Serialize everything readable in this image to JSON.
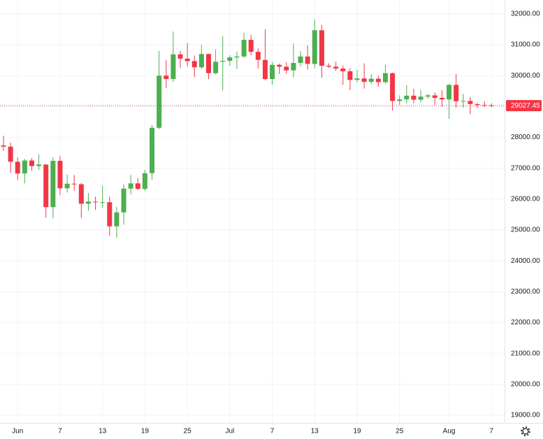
{
  "chart_data": {
    "type": "candlestick",
    "categories": [
      null,
      null,
      "Jun",
      null,
      null,
      null,
      null,
      null,
      "7",
      null,
      null,
      null,
      null,
      null,
      "13",
      null,
      null,
      null,
      null,
      null,
      "19",
      null,
      null,
      null,
      null,
      null,
      "25",
      null,
      null,
      null,
      null,
      null,
      "Jul",
      null,
      null,
      null,
      null,
      null,
      "7",
      null,
      null,
      null,
      null,
      null,
      "13",
      null,
      null,
      null,
      null,
      null,
      "19",
      null,
      null,
      null,
      null,
      null,
      "25",
      null,
      null,
      null,
      null,
      null,
      null,
      "Aug",
      null,
      null,
      null,
      null,
      null,
      "7"
    ],
    "open": [
      27740,
      27700,
      27210,
      26830,
      27250,
      27070,
      27120,
      25740,
      27240,
      26350,
      26500,
      26480,
      25850,
      25920,
      25900,
      25900,
      25120,
      25570,
      26340,
      26510,
      26330,
      26840,
      28310,
      30000,
      29890,
      30690,
      30550,
      30470,
      30270,
      30700,
      30080,
      30450,
      30480,
      30590,
      30620,
      31160,
      30770,
      30510,
      29890,
      30350,
      30290,
      30170,
      30410,
      30620,
      30380,
      31470,
      30320,
      30290,
      30230,
      30140,
      29860,
      29910,
      29800,
      29900,
      29790,
      30080,
      29180,
      29230,
      29350,
      29220,
      29320,
      29360,
      29280,
      29230,
      29700,
      29170,
      29180,
      29080,
      29050,
      29040
    ],
    "high": [
      28050,
      27830,
      27350,
      27300,
      27330,
      27450,
      27130,
      27360,
      27390,
      26800,
      26780,
      26530,
      26200,
      26080,
      26430,
      26080,
      25750,
      26480,
      26780,
      26680,
      26950,
      28400,
      30800,
      30500,
      31430,
      30800,
      31050,
      30650,
      31000,
      30710,
      30850,
      31280,
      30660,
      30780,
      31390,
      31330,
      30880,
      31500,
      30440,
      30390,
      30430,
      31040,
      30800,
      30980,
      31820,
      31640,
      30400,
      30450,
      30330,
      30240,
      30190,
      30400,
      30050,
      29990,
      30350,
      30100,
      29360,
      29690,
      29570,
      29540,
      29410,
      29450,
      29530,
      29730,
      30050,
      29410,
      29310,
      29110,
      29170,
      29100
    ],
    "low": [
      27560,
      26850,
      26620,
      26510,
      26920,
      26950,
      25400,
      25380,
      26130,
      26210,
      26270,
      25390,
      25620,
      25650,
      25720,
      24820,
      24750,
      25170,
      26150,
      26290,
      26260,
      26630,
      28270,
      29600,
      29800,
      30250,
      30300,
      29950,
      30220,
      29880,
      30050,
      29520,
      30320,
      30220,
      30580,
      30660,
      30230,
      29850,
      29710,
      30050,
      30060,
      29950,
      30300,
      30200,
      30250,
      29930,
      30250,
      30150,
      29700,
      29530,
      29780,
      29580,
      29730,
      29640,
      29740,
      28870,
      29050,
      29100,
      29100,
      29130,
      29250,
      29050,
      29000,
      28600,
      28960,
      28960,
      28750,
      28960,
      28980,
      28980
    ],
    "close": [
      27700,
      27210,
      26830,
      27250,
      27070,
      27120,
      25740,
      27240,
      26350,
      26500,
      26480,
      25850,
      25920,
      25900,
      25900,
      25120,
      25570,
      26340,
      26510,
      26330,
      26840,
      28310,
      30000,
      29890,
      30690,
      30550,
      30470,
      30270,
      30700,
      30080,
      30450,
      30480,
      30590,
      30620,
      31160,
      30770,
      30510,
      29890,
      30350,
      30290,
      30170,
      30410,
      30620,
      30380,
      31470,
      30320,
      30290,
      30230,
      30140,
      29860,
      29910,
      29800,
      29900,
      29790,
      30080,
      29180,
      29230,
      29350,
      29220,
      29320,
      29360,
      29280,
      29230,
      29700,
      29170,
      29180,
      29080,
      29050,
      29040,
      29027.45
    ],
    "up_color": "#4caf50",
    "down_color": "#f23645",
    "ylim": [
      18750,
      32450
    ],
    "yticks": [
      {
        "value": 19000,
        "label": "19000.00"
      },
      {
        "value": 20000,
        "label": "20000.00"
      },
      {
        "value": 21000,
        "label": "21000.00"
      },
      {
        "value": 22000,
        "label": "22000.00"
      },
      {
        "value": 23000,
        "label": "23000.00"
      },
      {
        "value": 24000,
        "label": "24000.00"
      },
      {
        "value": 25000,
        "label": "25000.00"
      },
      {
        "value": 26000,
        "label": "26000.00"
      },
      {
        "value": 27000,
        "label": "27000.00"
      },
      {
        "value": 28000,
        "label": "28000.00"
      },
      {
        "value": 29000,
        "label": "29000.00"
      },
      {
        "value": 30000,
        "label": "30000.00"
      },
      {
        "value": 31000,
        "label": "31000.00"
      },
      {
        "value": 32000,
        "label": "32000.00"
      }
    ],
    "grid": true
  }
}
